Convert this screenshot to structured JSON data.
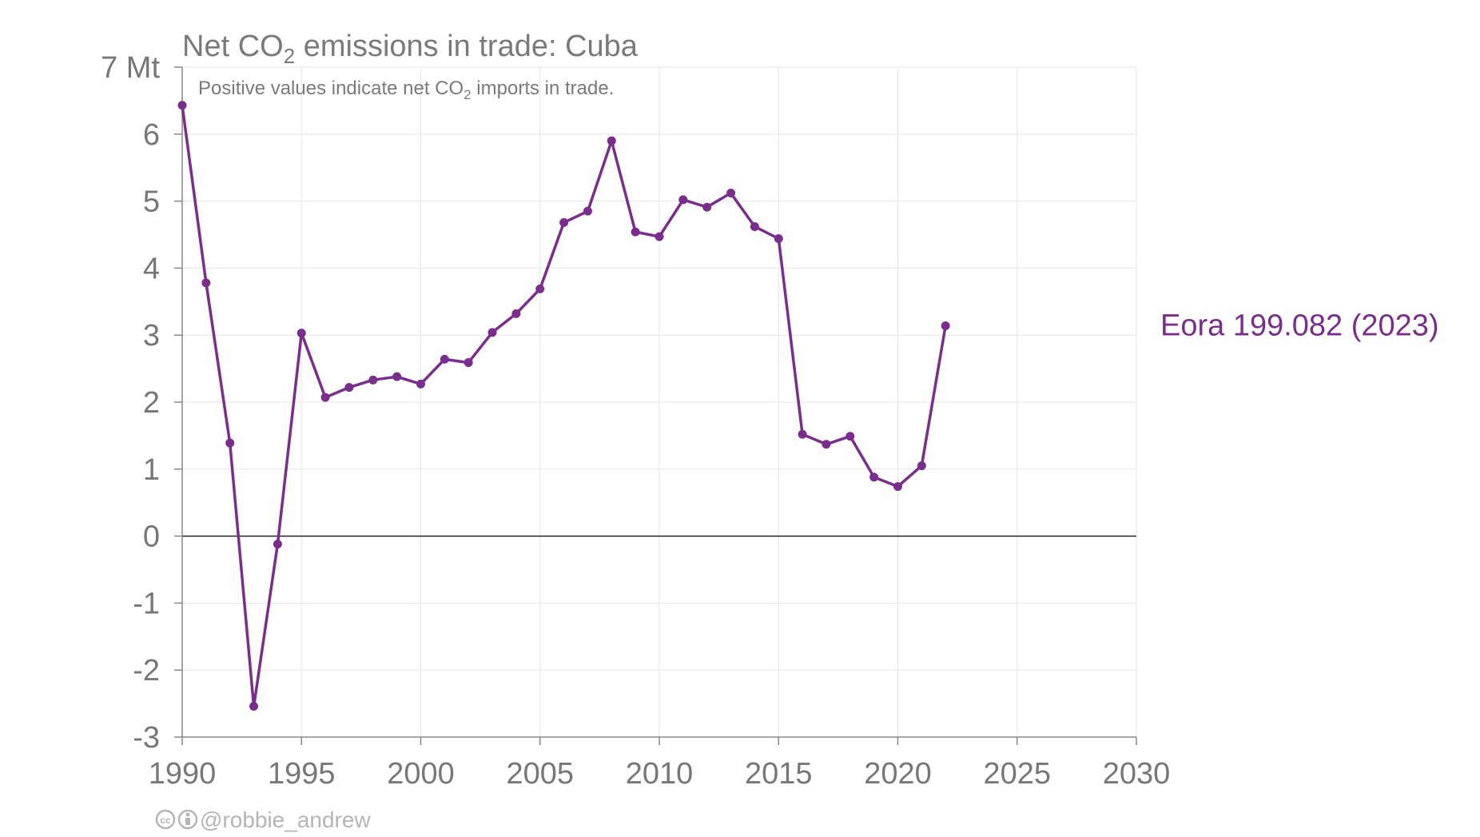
{
  "chart_data": {
    "type": "line",
    "title_prefix": "Net CO",
    "title_sub": "2",
    "title_suffix": " emissions in trade: Cuba",
    "subtitle_prefix": "Positive values indicate net CO",
    "subtitle_sub": "2",
    "subtitle_suffix": " imports in trade.",
    "xlim": [
      1990,
      2030
    ],
    "ylim": [
      -3,
      7
    ],
    "x_ticks": [
      "1990",
      "1995",
      "2000",
      "2005",
      "2010",
      "2015",
      "2020",
      "2025",
      "2030"
    ],
    "y_ticks": [
      "-3",
      "-2",
      "-1",
      "0",
      "1",
      "2",
      "3",
      "4",
      "5",
      "6",
      "7 Mt"
    ],
    "grid": true,
    "zero_line": true,
    "series": [
      {
        "name": "Eora 199.082 (2023)",
        "color": "#7b2d8e",
        "x": [
          1990,
          1991,
          1992,
          1993,
          1994,
          1995,
          1996,
          1997,
          1998,
          1999,
          2000,
          2001,
          2002,
          2003,
          2004,
          2005,
          2006,
          2007,
          2008,
          2009,
          2010,
          2011,
          2012,
          2013,
          2014,
          2015,
          2016,
          2017,
          2018,
          2019,
          2020,
          2021,
          2022
        ],
        "y": [
          6.43,
          3.78,
          1.39,
          -2.54,
          -0.12,
          3.03,
          2.07,
          2.22,
          2.33,
          2.38,
          2.27,
          2.64,
          2.59,
          3.04,
          3.32,
          3.69,
          4.68,
          4.85,
          5.9,
          4.54,
          4.47,
          5.02,
          4.91,
          5.12,
          4.62,
          4.44,
          1.52,
          1.37,
          1.49,
          0.88,
          0.74,
          1.05,
          3.14
        ]
      }
    ]
  },
  "credit": "@robbie_andrew",
  "credit_icons": [
    "cc-icon",
    "attribution-icon"
  ]
}
